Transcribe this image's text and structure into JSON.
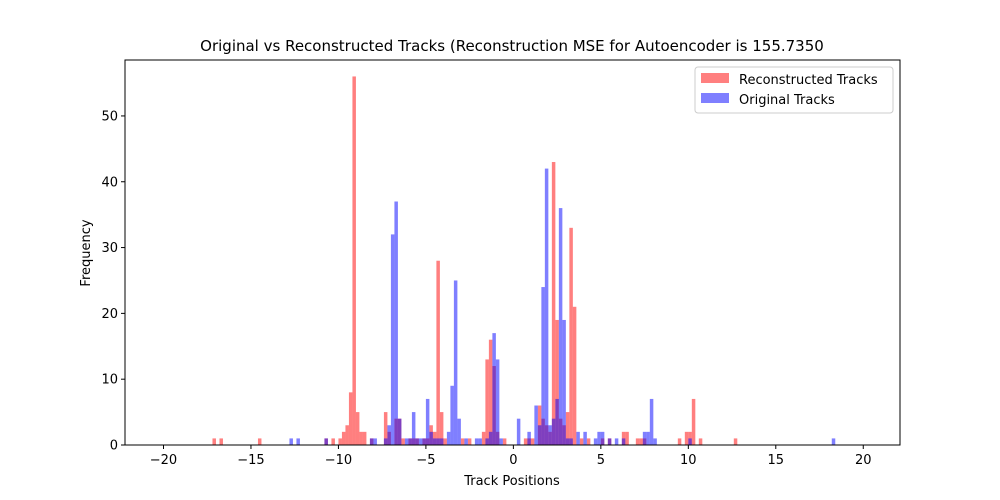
{
  "chart_data": {
    "type": "bar",
    "title": "Original vs Reconstructed Tracks (Reconstruction MSE for Autoencoder is 155.7350",
    "xlabel": "Track Positions",
    "ylabel": "Frequency",
    "xlim": [
      -22.2,
      22.1
    ],
    "ylim": [
      0,
      58.5
    ],
    "x_ticks": [
      -20,
      -15,
      -10,
      -5,
      0,
      5,
      10,
      15,
      20
    ],
    "y_ticks": [
      0,
      10,
      20,
      30,
      40,
      50
    ],
    "x_tick_labels": [
      "−20",
      "−15",
      "−10",
      "−5",
      "0",
      "5",
      "10",
      "15",
      "20"
    ],
    "y_tick_labels": [
      "0",
      "10",
      "20",
      "30",
      "40",
      "50"
    ],
    "bin_width": 0.2,
    "grid": false,
    "legend_position": "top-right",
    "series": [
      {
        "name": "Reconstructed Tracks",
        "color": "#ff0000",
        "alpha": 0.5,
        "bins": [
          [
            -17.2,
            1
          ],
          [
            -16.8,
            1
          ],
          [
            -14.6,
            1
          ],
          [
            -10.8,
            1
          ],
          [
            -10.4,
            1
          ],
          [
            -10.0,
            1
          ],
          [
            -9.8,
            2
          ],
          [
            -9.6,
            3
          ],
          [
            -9.4,
            8
          ],
          [
            -9.2,
            56
          ],
          [
            -9.0,
            5
          ],
          [
            -8.8,
            2
          ],
          [
            -8.6,
            2
          ],
          [
            -8.2,
            1
          ],
          [
            -7.4,
            5
          ],
          [
            -7.2,
            2
          ],
          [
            -6.8,
            4
          ],
          [
            -6.6,
            4
          ],
          [
            -6.4,
            1
          ],
          [
            -6.0,
            1
          ],
          [
            -5.8,
            1
          ],
          [
            -5.6,
            1
          ],
          [
            -5.2,
            1
          ],
          [
            -5.0,
            1
          ],
          [
            -4.8,
            3
          ],
          [
            -4.6,
            2
          ],
          [
            -4.4,
            28
          ],
          [
            -4.2,
            5
          ],
          [
            -4.0,
            1
          ],
          [
            -3.0,
            1
          ],
          [
            -2.6,
            1
          ],
          [
            -1.8,
            2
          ],
          [
            -1.6,
            13
          ],
          [
            -1.4,
            16
          ],
          [
            -1.2,
            12
          ],
          [
            -1.0,
            2
          ],
          [
            -0.6,
            1
          ],
          [
            0.6,
            1
          ],
          [
            0.8,
            1
          ],
          [
            1.0,
            1
          ],
          [
            1.4,
            6
          ],
          [
            1.6,
            4
          ],
          [
            1.8,
            3
          ],
          [
            2.0,
            2
          ],
          [
            2.2,
            43
          ],
          [
            2.4,
            19
          ],
          [
            2.6,
            4
          ],
          [
            2.8,
            3
          ],
          [
            3.0,
            5
          ],
          [
            3.2,
            33
          ],
          [
            3.4,
            21
          ],
          [
            3.8,
            1
          ],
          [
            4.2,
            1
          ],
          [
            5.0,
            1
          ],
          [
            5.4,
            1
          ],
          [
            6.2,
            2
          ],
          [
            6.4,
            2
          ],
          [
            7.0,
            1
          ],
          [
            7.2,
            1
          ],
          [
            7.4,
            1
          ],
          [
            9.4,
            1
          ],
          [
            9.8,
            2
          ],
          [
            10.0,
            2
          ],
          [
            10.2,
            7
          ],
          [
            10.6,
            1
          ],
          [
            12.6,
            1
          ]
        ]
      },
      {
        "name": "Original Tracks",
        "color": "#0000ff",
        "alpha": 0.5,
        "bins": [
          [
            -12.8,
            1
          ],
          [
            -12.4,
            1
          ],
          [
            -10.8,
            1
          ],
          [
            -8.2,
            1
          ],
          [
            -8.0,
            1
          ],
          [
            -7.4,
            1
          ],
          [
            -7.2,
            3
          ],
          [
            -7.0,
            32
          ],
          [
            -6.8,
            37
          ],
          [
            -6.6,
            4
          ],
          [
            -6.2,
            1
          ],
          [
            -6.0,
            1
          ],
          [
            -5.8,
            5
          ],
          [
            -5.6,
            1
          ],
          [
            -5.4,
            1
          ],
          [
            -5.2,
            1
          ],
          [
            -5.0,
            7
          ],
          [
            -4.8,
            2
          ],
          [
            -4.6,
            1
          ],
          [
            -4.4,
            1
          ],
          [
            -4.2,
            1
          ],
          [
            -3.8,
            2
          ],
          [
            -3.6,
            9
          ],
          [
            -3.4,
            25
          ],
          [
            -3.2,
            4
          ],
          [
            -2.8,
            1
          ],
          [
            -2.2,
            1
          ],
          [
            -2.0,
            1
          ],
          [
            -1.6,
            1
          ],
          [
            -1.4,
            2
          ],
          [
            -1.2,
            17
          ],
          [
            -1.0,
            13
          ],
          [
            -0.8,
            1
          ],
          [
            0.2,
            4
          ],
          [
            0.8,
            2
          ],
          [
            1.2,
            6
          ],
          [
            1.4,
            3
          ],
          [
            1.6,
            24
          ],
          [
            1.8,
            42
          ],
          [
            2.0,
            3
          ],
          [
            2.2,
            4
          ],
          [
            2.4,
            7
          ],
          [
            2.6,
            36
          ],
          [
            2.8,
            19
          ],
          [
            3.0,
            1
          ],
          [
            3.2,
            1
          ],
          [
            3.6,
            2
          ],
          [
            4.0,
            2
          ],
          [
            4.6,
            1
          ],
          [
            4.8,
            2
          ],
          [
            5.0,
            2
          ],
          [
            5.4,
            1
          ],
          [
            5.8,
            1
          ],
          [
            6.2,
            1
          ],
          [
            7.4,
            2
          ],
          [
            7.6,
            2
          ],
          [
            7.8,
            7
          ],
          [
            8.0,
            1
          ],
          [
            10.0,
            1
          ],
          [
            18.2,
            1
          ]
        ]
      }
    ]
  }
}
